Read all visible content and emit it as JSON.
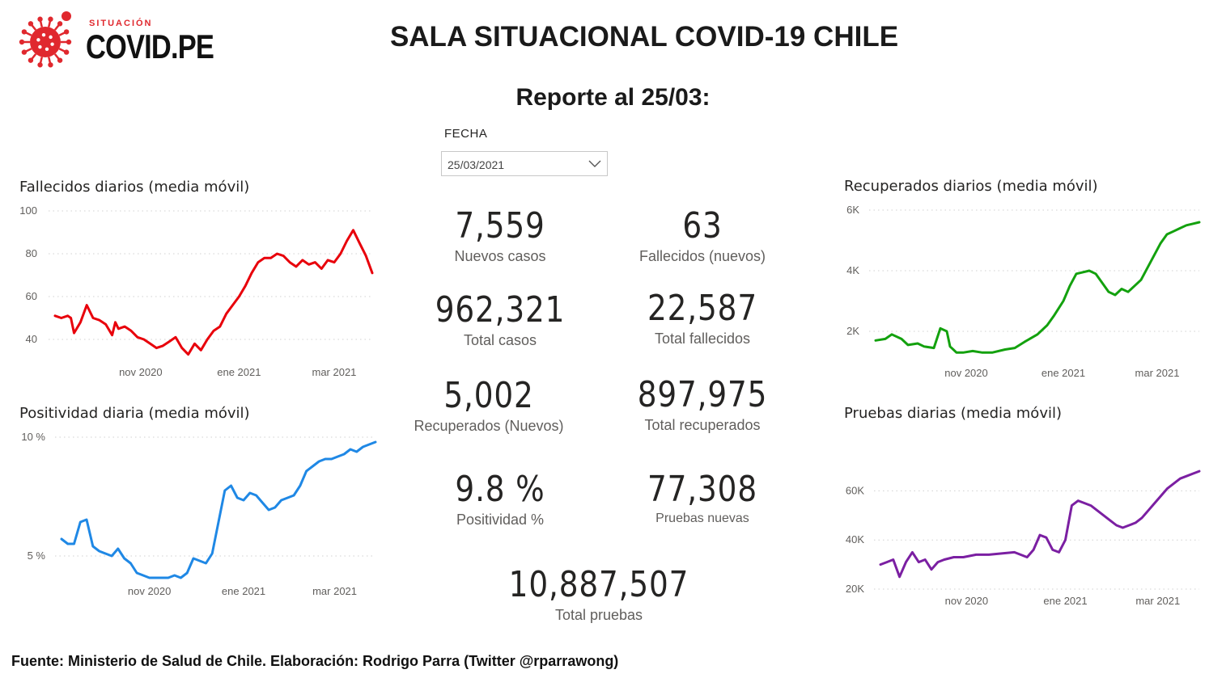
{
  "logo": {
    "small_text": "SITUACIÓN",
    "big_text": "COVID.PE",
    "virus_color": "#e0282e"
  },
  "header": {
    "title": "SALA SITUACIONAL COVID-19 CHILE",
    "subtitle": "Reporte al 25/03:"
  },
  "filter": {
    "label": "FECHA",
    "value": "25/03/2021",
    "icon": "chevron-down-icon"
  },
  "kpis": {
    "nuevos_casos": {
      "value": "7,559",
      "label": "Nuevos casos"
    },
    "fallecidos_nuevos": {
      "value": "63",
      "label": "Fallecidos (nuevos)"
    },
    "total_casos": {
      "value": "962,321",
      "label": "Total casos"
    },
    "total_fallecidos": {
      "value": "22,587",
      "label": "Total fallecidos"
    },
    "recuperados_nuevos": {
      "value": "5,002",
      "label": "Recuperados (Nuevos)"
    },
    "total_recuperados": {
      "value": "897,975",
      "label": "Total recuperados"
    },
    "positividad": {
      "value": "9.8 %",
      "label": "Positividad %"
    },
    "pruebas_nuevas": {
      "value": "77,308",
      "label": "Pruebas nuevas"
    },
    "total_pruebas": {
      "value": "10,887,507",
      "label": "Total pruebas"
    }
  },
  "charts": {
    "fallecidos": {
      "title": "Fallecidos diarios (media móvil)"
    },
    "positividad": {
      "title": "Positividad diaria (media móvil)"
    },
    "recuperados": {
      "title": "Recuperados diarios (media móvil)"
    },
    "pruebas": {
      "title": "Pruebas diarias (media móvil)"
    }
  },
  "footer": {
    "text": "Fuente: Ministerio de Salud de Chile. Elaboración: Rodrigo Parra (Twitter @rparrawong)"
  },
  "chart_data": [
    {
      "id": "fallecidos",
      "type": "line",
      "title": "Fallecidos diarios (media móvil)",
      "color": "#e8000b",
      "x_ticks": [
        "nov 2020",
        "ene 2021",
        "mar 2021"
      ],
      "x_tick_pos": [
        0.27,
        0.58,
        0.88
      ],
      "y_ticks": [
        "40",
        "60",
        "80",
        "100"
      ],
      "ylim": [
        40,
        100
      ],
      "grid": true,
      "x": [
        0,
        0.02,
        0.04,
        0.05,
        0.06,
        0.08,
        0.1,
        0.12,
        0.14,
        0.16,
        0.18,
        0.19,
        0.2,
        0.22,
        0.24,
        0.26,
        0.28,
        0.3,
        0.32,
        0.34,
        0.36,
        0.38,
        0.4,
        0.42,
        0.44,
        0.46,
        0.48,
        0.5,
        0.52,
        0.54,
        0.56,
        0.58,
        0.6,
        0.62,
        0.64,
        0.66,
        0.68,
        0.7,
        0.72,
        0.74,
        0.76,
        0.78,
        0.8,
        0.82,
        0.84,
        0.86,
        0.88,
        0.9,
        0.92,
        0.94,
        0.96,
        0.98,
        1.0
      ],
      "values": [
        51,
        50,
        51,
        50,
        43,
        48,
        56,
        50,
        49,
        47,
        42,
        48,
        45,
        46,
        44,
        41,
        40,
        38,
        36,
        37,
        39,
        41,
        36,
        33,
        38,
        35,
        40,
        44,
        46,
        52,
        56,
        60,
        65,
        71,
        76,
        78,
        78,
        80,
        79,
        76,
        74,
        77,
        75,
        76,
        73,
        77,
        76,
        80,
        86,
        91,
        85,
        79,
        71
      ]
    },
    {
      "id": "positividad",
      "type": "line",
      "title": "Positividad diaria (media móvil)",
      "color": "#1f88e5",
      "x_ticks": [
        "nov 2020",
        "ene 2021",
        "mar 2021"
      ],
      "x_tick_pos": [
        0.28,
        0.58,
        0.87
      ],
      "y_ticks": [
        "5 %",
        "10 %"
      ],
      "ylim": [
        4.2,
        10
      ],
      "grid": true,
      "x": [
        0,
        0.02,
        0.04,
        0.06,
        0.08,
        0.1,
        0.12,
        0.14,
        0.16,
        0.18,
        0.2,
        0.22,
        0.24,
        0.26,
        0.28,
        0.3,
        0.32,
        0.34,
        0.36,
        0.38,
        0.4,
        0.42,
        0.44,
        0.46,
        0.48,
        0.5,
        0.52,
        0.54,
        0.56,
        0.58,
        0.6,
        0.62,
        0.64,
        0.66,
        0.68,
        0.7,
        0.72,
        0.74,
        0.76,
        0.78,
        0.8,
        0.82,
        0.84,
        0.86,
        0.88,
        0.9,
        0.92,
        0.94,
        0.96,
        0.98,
        1.0
      ],
      "values": [
        5.8,
        5.6,
        5.6,
        6.5,
        6.6,
        5.5,
        5.3,
        5.2,
        5.1,
        5.4,
        5.0,
        4.8,
        4.4,
        4.3,
        4.2,
        4.2,
        4.2,
        4.2,
        4.3,
        4.2,
        4.4,
        5.0,
        4.9,
        4.8,
        5.2,
        6.5,
        7.8,
        8.0,
        7.5,
        7.4,
        7.7,
        7.6,
        7.3,
        7.0,
        7.1,
        7.4,
        7.5,
        7.6,
        8.0,
        8.6,
        8.8,
        9.0,
        9.1,
        9.1,
        9.2,
        9.3,
        9.5,
        9.4,
        9.6,
        9.7,
        9.8
      ]
    },
    {
      "id": "recuperados",
      "type": "line",
      "title": "Recuperados diarios (media móvil)",
      "color": "#13a10e",
      "x_ticks": [
        "nov 2020",
        "ene 2021",
        "mar 2021"
      ],
      "x_tick_pos": [
        0.28,
        0.58,
        0.87
      ],
      "y_ticks": [
        "2K",
        "4K",
        "6K"
      ],
      "ylim": [
        0,
        6000
      ],
      "grid": true,
      "x": [
        0,
        0.03,
        0.05,
        0.08,
        0.1,
        0.13,
        0.15,
        0.18,
        0.2,
        0.22,
        0.23,
        0.24,
        0.25,
        0.27,
        0.3,
        0.33,
        0.36,
        0.4,
        0.43,
        0.46,
        0.5,
        0.53,
        0.55,
        0.58,
        0.6,
        0.62,
        0.64,
        0.66,
        0.68,
        0.7,
        0.72,
        0.74,
        0.76,
        0.78,
        0.8,
        0.82,
        0.84,
        0.86,
        0.88,
        0.9,
        0.92,
        0.94,
        0.96,
        0.98,
        1.0
      ],
      "values": [
        1700,
        1750,
        1900,
        1750,
        1550,
        1600,
        1500,
        1450,
        2100,
        2000,
        1500,
        1400,
        1300,
        1300,
        1350,
        1300,
        1300,
        1400,
        1450,
        1650,
        1900,
        2200,
        2500,
        3000,
        3500,
        3900,
        3950,
        4000,
        3900,
        3600,
        3300,
        3200,
        3400,
        3300,
        3500,
        3700,
        4100,
        4500,
        4900,
        5200,
        5300,
        5400,
        5500,
        5550,
        5600
      ]
    },
    {
      "id": "pruebas",
      "type": "line",
      "title": "Pruebas diarias (media móvil)",
      "color": "#7b1fa2",
      "x_ticks": [
        "nov 2020",
        "ene 2021",
        "mar 2021"
      ],
      "x_tick_pos": [
        0.27,
        0.58,
        0.87
      ],
      "y_ticks": [
        "20K",
        "40K",
        "60K"
      ],
      "ylim": [
        20000,
        70000
      ],
      "grid": true,
      "x": [
        0,
        0.02,
        0.04,
        0.06,
        0.08,
        0.1,
        0.12,
        0.14,
        0.16,
        0.18,
        0.2,
        0.23,
        0.26,
        0.3,
        0.34,
        0.38,
        0.42,
        0.46,
        0.48,
        0.5,
        0.52,
        0.54,
        0.56,
        0.58,
        0.6,
        0.62,
        0.64,
        0.66,
        0.68,
        0.7,
        0.72,
        0.74,
        0.76,
        0.78,
        0.8,
        0.82,
        0.84,
        0.86,
        0.88,
        0.9,
        0.92,
        0.94,
        0.96,
        0.98,
        1.0
      ],
      "values": [
        30000,
        31000,
        32000,
        25000,
        31000,
        35000,
        31000,
        32000,
        28000,
        31000,
        32000,
        33000,
        33000,
        34000,
        34000,
        34500,
        35000,
        33000,
        36000,
        42000,
        41000,
        36000,
        35000,
        40000,
        54000,
        56000,
        55000,
        54000,
        52000,
        50000,
        48000,
        46000,
        45000,
        46000,
        47000,
        49000,
        52000,
        55000,
        58000,
        61000,
        63000,
        65000,
        66000,
        67000,
        68000
      ]
    }
  ]
}
